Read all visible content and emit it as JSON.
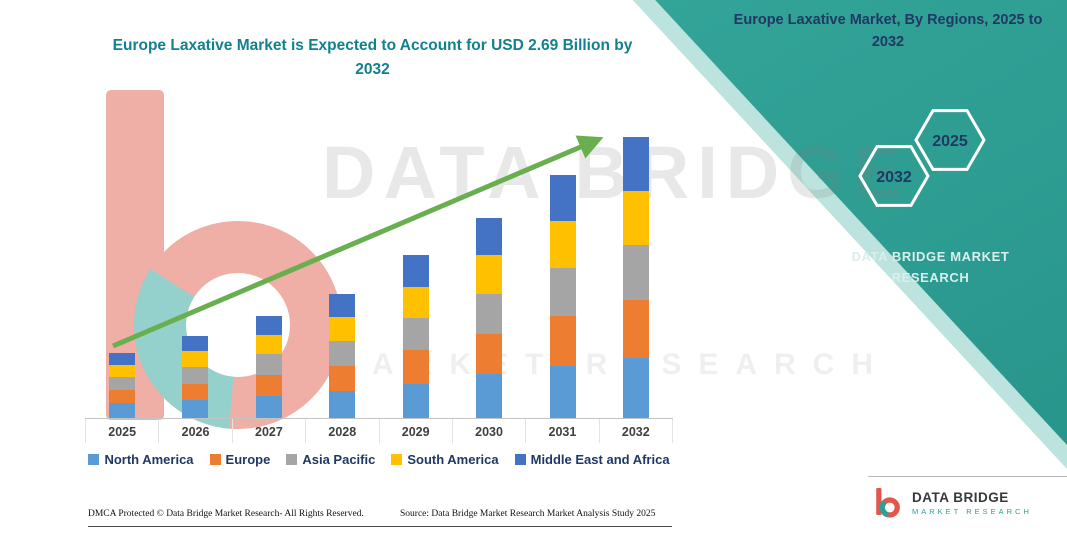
{
  "header": {
    "main_title": "Europe Laxative Market is Expected to Account for USD 2.69 Billion by 2032"
  },
  "banner": {
    "title": "Europe Laxative Market, By Regions, 2025 to 2032",
    "hexagon_left": "2032",
    "hexagon_right": "2025",
    "brand_text": "DATA BRIDGE MARKET RESEARCH"
  },
  "watermark": {
    "line1": "DATA BRIDGE",
    "line2": "MARKET RESEARCH"
  },
  "chart_data": {
    "type": "bar",
    "stacked": true,
    "title": "Europe Laxative Market is Expected to Account for USD 2.69 Billion by 2032",
    "unit": "USD Billion",
    "categories": [
      "2025",
      "2026",
      "2027",
      "2028",
      "2029",
      "2030",
      "2031",
      "2032"
    ],
    "series": [
      {
        "name": "North America",
        "color": "#5B9BD5",
        "values": [
          0.14,
          0.17,
          0.21,
          0.26,
          0.33,
          0.42,
          0.5,
          0.58
        ]
      },
      {
        "name": "Europe",
        "color": "#ED7D31",
        "values": [
          0.13,
          0.16,
          0.2,
          0.24,
          0.32,
          0.39,
          0.48,
          0.55
        ]
      },
      {
        "name": "Asia Pacific",
        "color": "#A5A5A5",
        "values": [
          0.12,
          0.16,
          0.2,
          0.24,
          0.31,
          0.38,
          0.46,
          0.53
        ]
      },
      {
        "name": "South America",
        "color": "#FFC000",
        "values": [
          0.12,
          0.15,
          0.19,
          0.23,
          0.3,
          0.37,
          0.45,
          0.52
        ]
      },
      {
        "name": "Middle East and Africa",
        "color": "#4472C4",
        "values": [
          0.11,
          0.15,
          0.18,
          0.22,
          0.3,
          0.36,
          0.44,
          0.51
        ]
      }
    ],
    "totals": [
      0.62,
      0.79,
      0.98,
      1.19,
      1.56,
      1.92,
      2.33,
      2.69
    ],
    "ylim": [
      0,
      2.8
    ],
    "grid": false,
    "legend_position": "bottom",
    "trend_arrow": {
      "present": true,
      "color": "#6AAF4F"
    }
  },
  "footer": {
    "dmca": "DMCA Protected © Data Bridge Market Research-  All Rights Reserved.",
    "source": "Source: Data Bridge Market Research  Market Analysis Study 2025"
  },
  "logo": {
    "title": "DATA BRIDGE",
    "subtitle": "MARKET RESEARCH"
  }
}
